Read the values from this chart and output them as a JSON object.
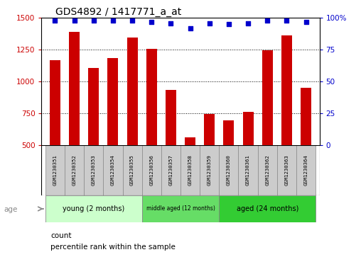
{
  "title": "GDS4892 / 1417771_a_at",
  "samples": [
    "GSM1230351",
    "GSM1230352",
    "GSM1230353",
    "GSM1230354",
    "GSM1230355",
    "GSM1230356",
    "GSM1230357",
    "GSM1230358",
    "GSM1230359",
    "GSM1230360",
    "GSM1230361",
    "GSM1230362",
    "GSM1230363",
    "GSM1230364"
  ],
  "counts": [
    1170,
    1390,
    1105,
    1185,
    1345,
    1255,
    935,
    560,
    745,
    695,
    760,
    1245,
    1365,
    950
  ],
  "percentiles": [
    98,
    98,
    98,
    98,
    98,
    97,
    96,
    92,
    96,
    95,
    96,
    98,
    98,
    97
  ],
  "ylim_left": [
    500,
    1500
  ],
  "ylim_right": [
    0,
    100
  ],
  "yticks_left": [
    500,
    750,
    1000,
    1250,
    1500
  ],
  "yticks_right": [
    0,
    25,
    50,
    75,
    100
  ],
  "groups": [
    {
      "label": "young (2 months)",
      "indices": [
        0,
        1,
        2,
        3,
        4
      ],
      "color": "#CCFFCC"
    },
    {
      "label": "middle aged (12 months)",
      "indices": [
        5,
        6,
        7,
        8
      ],
      "color": "#66DD66"
    },
    {
      "label": "aged (24 months)",
      "indices": [
        9,
        10,
        11,
        12,
        13
      ],
      "color": "#33CC33"
    }
  ],
  "bar_color": "#CC0000",
  "dot_color": "#0000CC",
  "sample_box_color": "#CCCCCC",
  "left_tick_color": "#CC0000",
  "right_tick_color": "#0000CC",
  "age_label": "age",
  "legend_count": "count",
  "legend_percentile": "percentile rank within the sample"
}
